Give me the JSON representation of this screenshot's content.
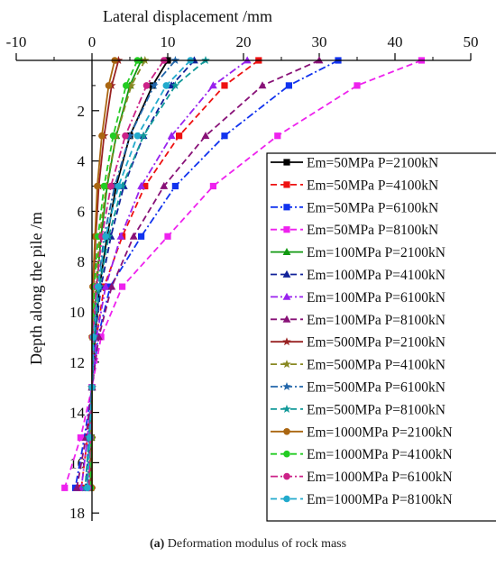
{
  "caption": {
    "label": "(a)",
    "text": " Deformation modulus of rock mass"
  },
  "chart_data": {
    "type": "line",
    "title": "",
    "xlabel": "Lateral displacement /mm",
    "ylabel": "Depth along the pile /m",
    "xlim": [
      -10,
      50
    ],
    "ylim": [
      0,
      19
    ],
    "x_ticks": [
      -10,
      0,
      10,
      20,
      30,
      40,
      50
    ],
    "y_ticks": [
      2,
      4,
      6,
      8,
      10,
      12,
      14,
      16,
      18
    ],
    "x_axis_position": "top",
    "y_inverted": true,
    "grid": false,
    "legend_position": "right",
    "depths": [
      0,
      1,
      3,
      5,
      7,
      9,
      11,
      13,
      15,
      17
    ],
    "series": [
      {
        "name": "Em=50MPa P=2100kN",
        "color": "#000000",
        "dash": "solid",
        "marker": "square",
        "x": [
          10.0,
          8.0,
          5.0,
          3.2,
          2.0,
          1.0,
          0.4,
          0.0,
          -0.1,
          -0.2
        ]
      },
      {
        "name": "Em=50MPa P=4100kN",
        "color": "#ee1111",
        "dash": "dash",
        "marker": "square",
        "x": [
          22.0,
          17.5,
          11.5,
          7.0,
          4.0,
          1.6,
          0.6,
          0.0,
          -0.6,
          -1.4
        ]
      },
      {
        "name": "Em=50MPa P=6100kN",
        "color": "#1133ee",
        "dash": "dashdot",
        "marker": "square",
        "x": [
          32.5,
          26.0,
          17.5,
          11.0,
          6.5,
          2.4,
          0.8,
          0.0,
          -1.0,
          -2.2
        ]
      },
      {
        "name": "Em=50MPa P=8100kN",
        "color": "#ee22ee",
        "dash": "dash",
        "marker": "square",
        "x": [
          43.5,
          35.0,
          24.5,
          16.0,
          10.0,
          4.0,
          1.2,
          0.0,
          -1.5,
          -3.6
        ]
      },
      {
        "name": "Em=100MPa P=2100kN",
        "color": "#119911",
        "dash": "solid",
        "marker": "triangle",
        "x": [
          6.5,
          5.0,
          3.2,
          2.0,
          1.2,
          0.6,
          0.2,
          0.0,
          -0.1,
          -0.2
        ]
      },
      {
        "name": "Em=100MPa P=4100kN",
        "color": "#112299",
        "dash": "dash",
        "marker": "triangle",
        "x": [
          13.5,
          10.5,
          6.8,
          4.2,
          2.5,
          1.2,
          0.4,
          0.0,
          -0.4,
          -0.8
        ]
      },
      {
        "name": "Em=100MPa P=6100kN",
        "color": "#9922ee",
        "dash": "dashdot",
        "marker": "triangle",
        "x": [
          20.5,
          16.0,
          10.5,
          6.5,
          3.8,
          1.8,
          0.6,
          0.0,
          -0.6,
          -1.4
        ]
      },
      {
        "name": "Em=100MPa P=8100kN",
        "color": "#881177",
        "dash": "dash",
        "marker": "triangle",
        "x": [
          30.0,
          22.5,
          15.0,
          9.5,
          5.5,
          2.6,
          0.9,
          0.0,
          -0.8,
          -2.0
        ]
      },
      {
        "name": "Em=500MPa P=2100kN",
        "color": "#992222",
        "dash": "solid",
        "marker": "star",
        "x": [
          3.5,
          2.6,
          1.6,
          0.9,
          0.5,
          0.2,
          0.05,
          0.0,
          -0.05,
          -0.1
        ]
      },
      {
        "name": "Em=500MPa P=4100kN",
        "color": "#888822",
        "dash": "dash",
        "marker": "star",
        "x": [
          7.0,
          5.2,
          3.2,
          1.9,
          1.0,
          0.5,
          0.1,
          0.0,
          -0.2,
          -0.4
        ]
      },
      {
        "name": "Em=500MPa P=6100kN",
        "color": "#2266aa",
        "dash": "dashdot",
        "marker": "star",
        "x": [
          11.0,
          8.2,
          5.0,
          3.0,
          1.6,
          0.8,
          0.2,
          0.0,
          -0.3,
          -0.6
        ]
      },
      {
        "name": "Em=500MPa P=8100kN",
        "color": "#119999",
        "dash": "dash",
        "marker": "star",
        "x": [
          15.0,
          11.0,
          6.8,
          4.0,
          2.2,
          1.0,
          0.3,
          0.0,
          -0.4,
          -0.9
        ]
      },
      {
        "name": "Em=1000MPa P=2100kN",
        "color": "#aa6611",
        "dash": "solid",
        "marker": "circle",
        "x": [
          3.0,
          2.2,
          1.3,
          0.7,
          0.4,
          0.1,
          0.0,
          0.0,
          0.0,
          0.0
        ]
      },
      {
        "name": "Em=1000MPa P=4100kN",
        "color": "#22cc22",
        "dash": "dash",
        "marker": "circle",
        "x": [
          6.0,
          4.5,
          2.8,
          1.6,
          0.8,
          0.3,
          0.1,
          0.0,
          -0.1,
          -0.2
        ]
      },
      {
        "name": "Em=1000MPa P=6100kN",
        "color": "#cc2288",
        "dash": "dashdot",
        "marker": "circle",
        "x": [
          9.5,
          7.2,
          4.4,
          2.5,
          1.3,
          0.6,
          0.1,
          0.0,
          -0.2,
          -0.4
        ]
      },
      {
        "name": "Em=1000MPa P=8100kN",
        "color": "#22aacc",
        "dash": "dash",
        "marker": "circle",
        "x": [
          13.0,
          9.8,
          6.0,
          3.5,
          1.8,
          0.8,
          0.2,
          0.0,
          -0.3,
          -0.6
        ]
      }
    ]
  }
}
